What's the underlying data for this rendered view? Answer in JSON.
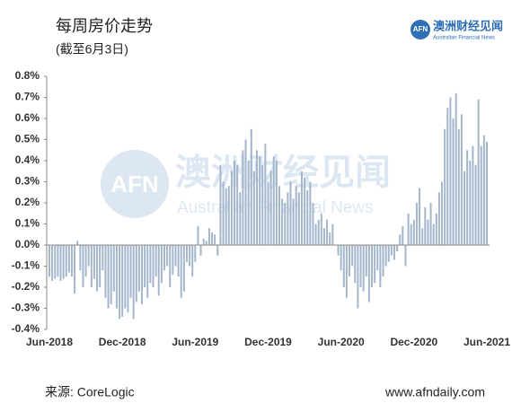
{
  "chart_data": {
    "type": "bar",
    "title": "每周房价走势",
    "subtitle": "(截至6月3日)",
    "source": "来源: CoreLogic",
    "website": "www.afndaily.com",
    "logo": {
      "badge": "AFN",
      "name": "澳洲财经见闻",
      "english": "Australian Financial News"
    },
    "color": "#a3b6cc",
    "ylim": [
      -0.4,
      0.8
    ],
    "yticks": [
      {
        "value": -0.4,
        "label": "-0.4%"
      },
      {
        "value": -0.3,
        "label": "-0.3%"
      },
      {
        "value": -0.2,
        "label": "-0.2%"
      },
      {
        "value": -0.1,
        "label": "-0.1%"
      },
      {
        "value": 0,
        "label": "0.0%"
      },
      {
        "value": 0.1,
        "label": "0.1%"
      },
      {
        "value": 0.2,
        "label": "0.2%"
      },
      {
        "value": 0.3,
        "label": "0.3%"
      },
      {
        "value": 0.4,
        "label": "0.4%"
      },
      {
        "value": 0.5,
        "label": "0.5%"
      },
      {
        "value": 0.6,
        "label": "0.6%"
      },
      {
        "value": 0.7,
        "label": "0.7%"
      },
      {
        "value": 0.8,
        "label": "0.8%"
      }
    ],
    "categories": [
      "Jun-2018",
      null,
      null,
      null,
      null,
      null,
      null,
      null,
      null,
      null,
      null,
      null,
      null,
      null,
      null,
      null,
      null,
      null,
      null,
      null,
      null,
      null,
      null,
      null,
      null,
      null,
      "Dec-2018",
      null,
      null,
      null,
      null,
      null,
      null,
      null,
      null,
      null,
      null,
      null,
      null,
      null,
      null,
      null,
      null,
      null,
      null,
      null,
      null,
      null,
      null,
      null,
      null,
      null,
      "Jun-2019",
      null,
      null,
      null,
      null,
      null,
      null,
      null,
      null,
      null,
      null,
      null,
      null,
      null,
      null,
      null,
      null,
      null,
      null,
      null,
      null,
      null,
      null,
      null,
      null,
      null,
      "Dec-2019",
      null,
      null,
      null,
      null,
      null,
      null,
      null,
      null,
      null,
      null,
      null,
      null,
      null,
      null,
      null,
      null,
      null,
      null,
      null,
      null,
      null,
      null,
      null,
      null,
      null,
      "Jun-2020",
      null,
      null,
      null,
      null,
      null,
      null,
      null,
      null,
      null,
      null,
      null,
      null,
      null,
      null,
      null,
      null,
      null,
      null,
      null,
      null,
      null,
      null,
      null,
      null,
      null,
      "Dec-2020",
      null,
      null,
      null,
      null,
      null,
      null,
      null,
      null,
      null,
      null,
      null,
      null,
      null,
      null,
      null,
      null,
      null,
      null,
      null,
      null,
      null,
      null,
      null,
      null,
      null,
      "Jun-2021"
    ],
    "values": [
      -0.15,
      -0.17,
      -0.16,
      -0.15,
      -0.17,
      -0.16,
      -0.15,
      -0.13,
      -0.15,
      -0.23,
      0.02,
      -0.12,
      -0.2,
      -0.15,
      -0.1,
      -0.2,
      -0.16,
      -0.22,
      -0.2,
      -0.12,
      -0.25,
      -0.3,
      -0.28,
      -0.22,
      -0.3,
      -0.35,
      -0.34,
      -0.3,
      -0.32,
      -0.25,
      -0.35,
      -0.27,
      -0.22,
      -0.28,
      -0.2,
      -0.25,
      -0.18,
      -0.2,
      -0.15,
      -0.24,
      -0.18,
      -0.12,
      -0.1,
      -0.2,
      -0.14,
      -0.1,
      -0.15,
      -0.25,
      -0.22,
      -0.08,
      -0.1,
      -0.15,
      -0.08,
      0.09,
      -0.05,
      0.03,
      0.02,
      0.08,
      0.06,
      0.05,
      -0.05,
      0.38,
      0.3,
      0.27,
      0.28,
      0.35,
      0.4,
      0.38,
      0.25,
      0.45,
      0.5,
      0.4,
      0.55,
      0.35,
      0.45,
      0.42,
      0.38,
      0.48,
      0.3,
      0.35,
      0.42,
      0.4,
      0.28,
      0.22,
      0.2,
      0.25,
      0.3,
      0.22,
      0.28,
      0.25,
      0.35,
      0.32,
      0.26,
      0.3,
      0.2,
      0.1,
      0.12,
      0.15,
      0.08,
      0.12,
      0.06,
      0.1,
      0.0,
      -0.05,
      -0.12,
      -0.2,
      -0.25,
      -0.15,
      -0.1,
      -0.18,
      -0.3,
      -0.2,
      -0.22,
      -0.15,
      -0.27,
      -0.2,
      -0.18,
      -0.12,
      -0.2,
      -0.15,
      -0.1,
      -0.08,
      -0.05,
      -0.07,
      -0.03,
      0.05,
      0.09,
      -0.1,
      0.15,
      0.1,
      0.12,
      0.2,
      0.27,
      0.08,
      0.18,
      0.12,
      0.2,
      0.1,
      0.15,
      0.25,
      0.3,
      0.55,
      0.65,
      0.7,
      0.6,
      0.72,
      0.55,
      0.62,
      0.35,
      0.45,
      0.4,
      0.47,
      0.38,
      0.69,
      0.47,
      0.52,
      0.49
    ]
  }
}
